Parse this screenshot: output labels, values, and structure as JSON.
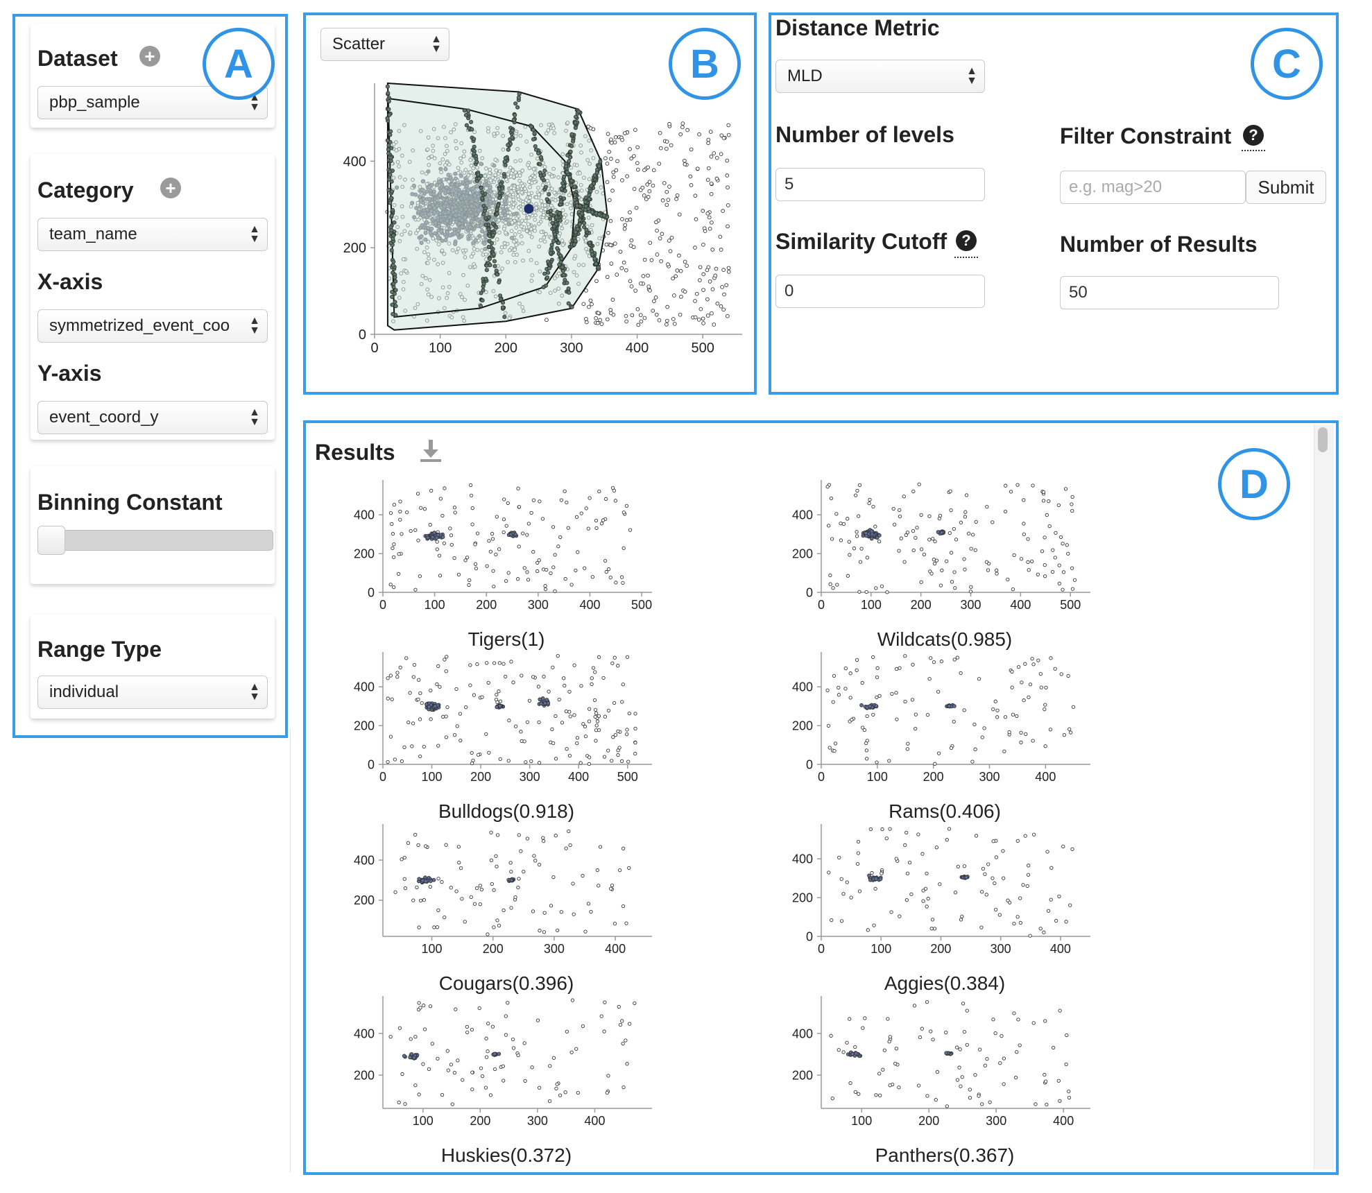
{
  "badges": {
    "a": "A",
    "b": "B",
    "c": "C",
    "d": "D"
  },
  "sidebar": {
    "dataset_label": "Dataset",
    "dataset_value": "pbp_sample",
    "category_label": "Category",
    "category_value": "team_name",
    "xaxis_label": "X-axis",
    "xaxis_value": "symmetrized_event_coo",
    "yaxis_label": "Y-axis",
    "yaxis_value": "event_coord_y",
    "binning_label": "Binning Constant",
    "binning_value": 0,
    "range_label": "Range Type",
    "range_value": "individual"
  },
  "canvas": {
    "chart_type_value": "Scatter"
  },
  "settings": {
    "distance_label": "Distance Metric",
    "distance_value": "MLD",
    "levels_label": "Number of levels",
    "levels_value": "5",
    "filter_label": "Filter Constraint",
    "filter_placeholder": "e.g. mag>20",
    "submit_label": "Submit",
    "cutoff_label": "Similarity Cutoff",
    "cutoff_value": "0",
    "results_count_label": "Number of Results",
    "results_count_value": "50"
  },
  "results": {
    "title": "Results",
    "items": [
      {
        "label": "Tigers(1)"
      },
      {
        "label": "Wildcats(0.985)"
      },
      {
        "label": "Bulldogs(0.918)"
      },
      {
        "label": "Rams(0.406)"
      },
      {
        "label": "Cougars(0.396)"
      },
      {
        "label": "Aggies(0.384)"
      },
      {
        "label": "Huskies(0.372)"
      },
      {
        "label": "Panthers(0.367)"
      }
    ]
  },
  "chart_data": [
    {
      "type": "scatter",
      "id": "main",
      "xticks": [
        0,
        100,
        200,
        300,
        400,
        500
      ],
      "yticks": [
        0,
        200,
        400
      ],
      "xlim": [
        0,
        560
      ],
      "ylim": [
        0,
        580
      ],
      "points": []
    },
    {
      "type": "scatter",
      "id": "tigers",
      "xticks": [
        0,
        100,
        200,
        300,
        400,
        500
      ],
      "yticks": [
        0,
        200,
        400
      ],
      "xlim": [
        0,
        520
      ],
      "ylim": [
        0,
        580
      ]
    },
    {
      "type": "scatter",
      "id": "wildcats",
      "xticks": [
        0,
        100,
        200,
        300,
        400,
        500
      ],
      "yticks": [
        0,
        200,
        400
      ],
      "xlim": [
        0,
        540
      ],
      "ylim": [
        0,
        580
      ]
    },
    {
      "type": "scatter",
      "id": "bulldogs",
      "xticks": [
        0,
        100,
        200,
        300,
        400,
        500
      ],
      "yticks": [
        0,
        200,
        400
      ],
      "xlim": [
        0,
        550
      ],
      "ylim": [
        0,
        580
      ]
    },
    {
      "type": "scatter",
      "id": "rams",
      "xticks": [
        0,
        100,
        200,
        300,
        400
      ],
      "yticks": [
        0,
        200,
        400
      ],
      "xlim": [
        0,
        480
      ],
      "ylim": [
        0,
        580
      ]
    },
    {
      "type": "scatter",
      "id": "cougars",
      "xticks": [
        100,
        200,
        300,
        400
      ],
      "yticks": [
        200,
        400
      ],
      "xlim": [
        20,
        460
      ],
      "ylim": [
        20,
        580
      ]
    },
    {
      "type": "scatter",
      "id": "aggies",
      "xticks": [
        0,
        100,
        200,
        300,
        400
      ],
      "yticks": [
        0,
        200,
        400
      ],
      "xlim": [
        0,
        450
      ],
      "ylim": [
        0,
        580
      ]
    },
    {
      "type": "scatter",
      "id": "huskies",
      "xticks": [
        100,
        200,
        300,
        400
      ],
      "yticks": [
        200,
        400
      ],
      "xlim": [
        30,
        500
      ],
      "ylim": [
        40,
        580
      ]
    },
    {
      "type": "scatter",
      "id": "panthers",
      "xticks": [
        100,
        200,
        300,
        400
      ],
      "yticks": [
        200,
        400
      ],
      "xlim": [
        40,
        440
      ],
      "ylim": [
        40,
        580
      ]
    }
  ]
}
